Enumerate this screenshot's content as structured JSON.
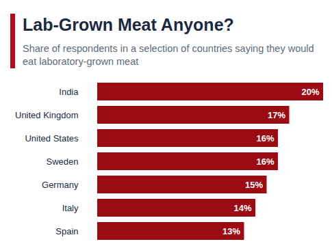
{
  "chart_data": {
    "type": "bar",
    "orientation": "horizontal",
    "title": "Lab-Grown Meat Anyone?",
    "subtitle": "Share of respondents in a selection of countries saying they would eat laboratory-grown meat",
    "categories": [
      "India",
      "United Kingdom",
      "United States",
      "Sweden",
      "Germany",
      "Italy",
      "Spain"
    ],
    "values": [
      20,
      17,
      16,
      16,
      15,
      14,
      13
    ],
    "value_labels": [
      "20%",
      "17%",
      "16%",
      "16%",
      "15%",
      "14%",
      "13%"
    ],
    "color": "#9c0b13",
    "xlim": [
      0,
      20
    ],
    "data_labels": true,
    "tick_labels": "y",
    "grid": false
  }
}
